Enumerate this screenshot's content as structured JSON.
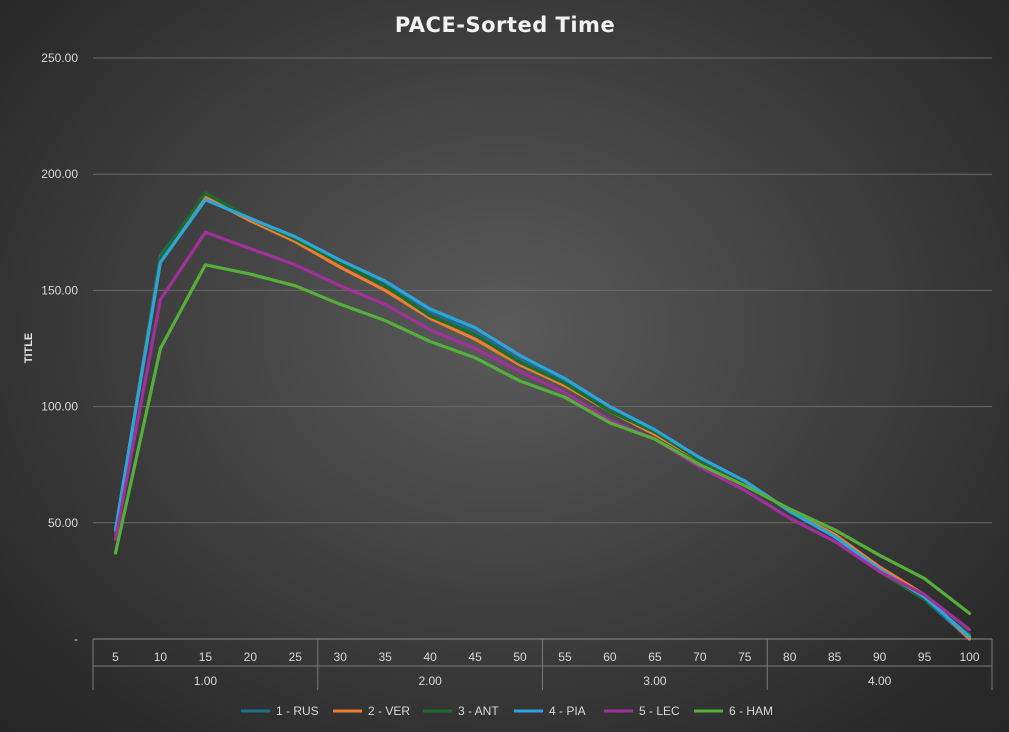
{
  "chart_data": {
    "type": "line",
    "title": "PACE-Sorted Time",
    "ylabel": "TITLE",
    "xlabel": "",
    "ylim": [
      0,
      250
    ],
    "yticks": [
      0,
      50,
      100,
      150,
      200,
      250
    ],
    "ytick_labels": [
      "-",
      "50.00",
      "100.00",
      "150.00",
      "200.00",
      "250.00"
    ],
    "grid": true,
    "legend_position": "bottom",
    "x": [
      "5",
      "10",
      "15",
      "20",
      "25",
      "30",
      "35",
      "40",
      "45",
      "50",
      "55",
      "60",
      "65",
      "70",
      "75",
      "80",
      "85",
      "90",
      "95",
      "100"
    ],
    "groups": [
      {
        "label": "1.00",
        "start": 0,
        "end": 4
      },
      {
        "label": "2.00",
        "start": 5,
        "end": 9
      },
      {
        "label": "3.00",
        "start": 10,
        "end": 14
      },
      {
        "label": "4.00",
        "start": 15,
        "end": 19
      }
    ],
    "series": [
      {
        "name": "1 - RUS",
        "color": "#1f6e8c",
        "values": [
          45,
          165,
          190,
          181,
          173,
          162,
          153,
          141,
          132,
          120,
          111,
          100,
          90,
          78,
          68,
          55,
          44,
          29,
          17,
          0
        ]
      },
      {
        "name": "2 - VER",
        "color": "#ed7d31",
        "values": [
          46,
          164,
          190,
          180,
          171,
          160,
          150,
          138,
          129,
          118,
          109,
          98,
          88,
          77,
          68,
          55,
          45,
          31,
          19,
          0
        ]
      },
      {
        "name": "3 - ANT",
        "color": "#1e6b2e",
        "values": [
          45,
          164,
          192,
          181,
          172,
          162,
          152,
          139,
          131,
          119,
          110,
          98,
          89,
          77,
          68,
          55,
          44,
          29,
          17,
          2
        ]
      },
      {
        "name": "4 - PIA",
        "color": "#2ea4dc",
        "values": [
          47,
          162,
          189,
          181,
          173,
          163,
          154,
          142,
          134,
          122,
          112,
          100,
          90,
          78,
          68,
          55,
          44,
          30,
          18,
          1
        ]
      },
      {
        "name": "5 - LEC",
        "color": "#a0309a",
        "values": [
          43,
          146,
          175,
          168,
          161,
          152,
          144,
          133,
          125,
          115,
          106,
          94,
          86,
          74,
          64,
          52,
          42,
          29,
          19,
          4
        ]
      },
      {
        "name": "6 - HAM",
        "color": "#55b03a",
        "values": [
          37,
          125,
          161,
          157,
          152,
          144,
          137,
          128,
          121,
          111,
          104,
          93,
          86,
          75,
          66,
          56,
          47,
          36,
          26,
          11
        ]
      }
    ]
  }
}
